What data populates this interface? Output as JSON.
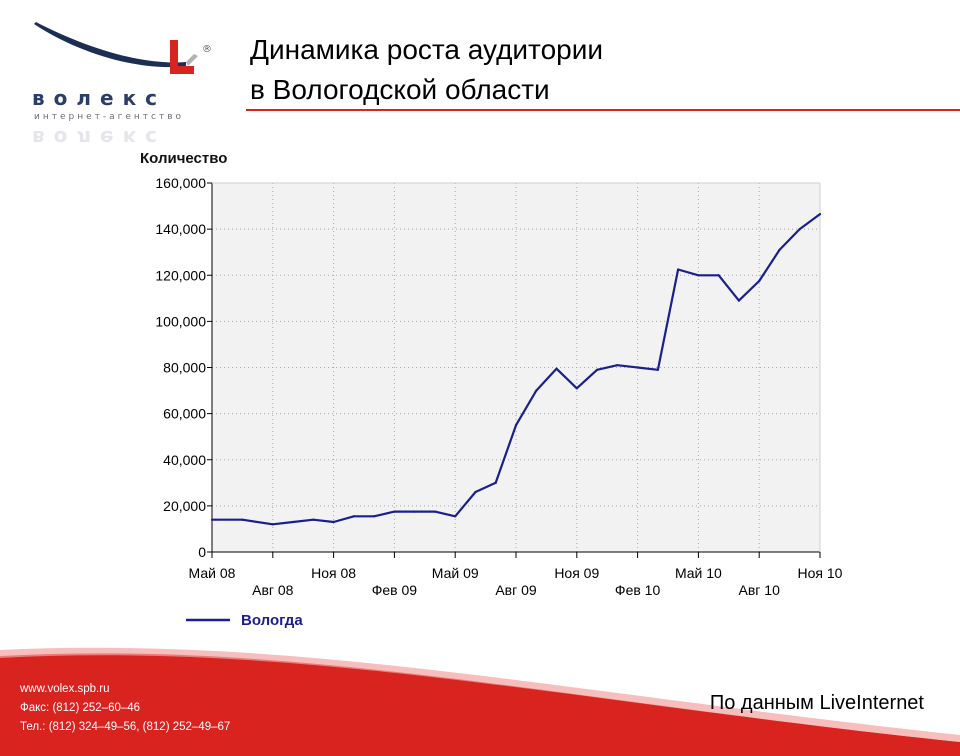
{
  "logo": {
    "brand": "волекс",
    "subtitle": "интернет-агентство",
    "registered": "®",
    "letter": "L"
  },
  "header": {
    "title_line1": "Динамика роста аудитории",
    "title_line2": "в Вологодской области"
  },
  "colors": {
    "accent": "#d8231f",
    "line": "#1a1f8c",
    "plot_bg": "#f2f2f2"
  },
  "chart_data": {
    "type": "line",
    "ylabel": "Количество",
    "ylim": [
      0,
      160000
    ],
    "yticks": [
      0,
      20000,
      40000,
      60000,
      80000,
      100000,
      120000,
      140000,
      160000
    ],
    "ytick_labels": [
      "0",
      "20,000",
      "40,000",
      "60,000",
      "80,000",
      "100,000",
      "120,000",
      "140,000",
      "160,000"
    ],
    "xlim": [
      0,
      30
    ],
    "xticks": [
      {
        "t": 0,
        "label": "Май 08",
        "row": 1
      },
      {
        "t": 3,
        "label": "Авг 08",
        "row": 2
      },
      {
        "t": 6,
        "label": "Ноя 08",
        "row": 1
      },
      {
        "t": 9,
        "label": "Фев 09",
        "row": 2
      },
      {
        "t": 12,
        "label": "Май 09",
        "row": 1
      },
      {
        "t": 15,
        "label": "Авг 09",
        "row": 2
      },
      {
        "t": 18,
        "label": "Ноя 09",
        "row": 1
      },
      {
        "t": 21,
        "label": "Фев 10",
        "row": 2
      },
      {
        "t": 24,
        "label": "Май 10",
        "row": 1
      },
      {
        "t": 27,
        "label": "Авг 10",
        "row": 2
      },
      {
        "t": 30,
        "label": "Ноя 10",
        "row": 1
      }
    ],
    "grid": true,
    "legend_position": "bottom-left",
    "series": [
      {
        "name": "Вологда",
        "x": [
          0,
          1.5,
          3,
          4,
          5,
          6,
          7,
          8,
          9,
          10,
          11,
          12,
          13,
          14,
          15,
          16,
          17,
          18,
          19,
          20,
          21,
          22,
          23,
          24,
          25,
          26,
          27,
          28,
          29,
          30
        ],
        "values": [
          14000,
          14000,
          12000,
          13000,
          14000,
          13000,
          15500,
          15500,
          17500,
          17500,
          17500,
          15500,
          26000,
          30000,
          55000,
          70000,
          79500,
          71000,
          79000,
          81000,
          80000,
          79000,
          122500,
          120000,
          120000,
          109000,
          117500,
          131000,
          140000,
          146500
        ]
      }
    ]
  },
  "source_note": "По данным LiveInternet",
  "contacts": {
    "site": "www.volex.spb.ru",
    "fax": "Факс: (812) 252–60–46",
    "phone": "Тел.: (812) 324–49–56, (812) 252–49–67"
  }
}
